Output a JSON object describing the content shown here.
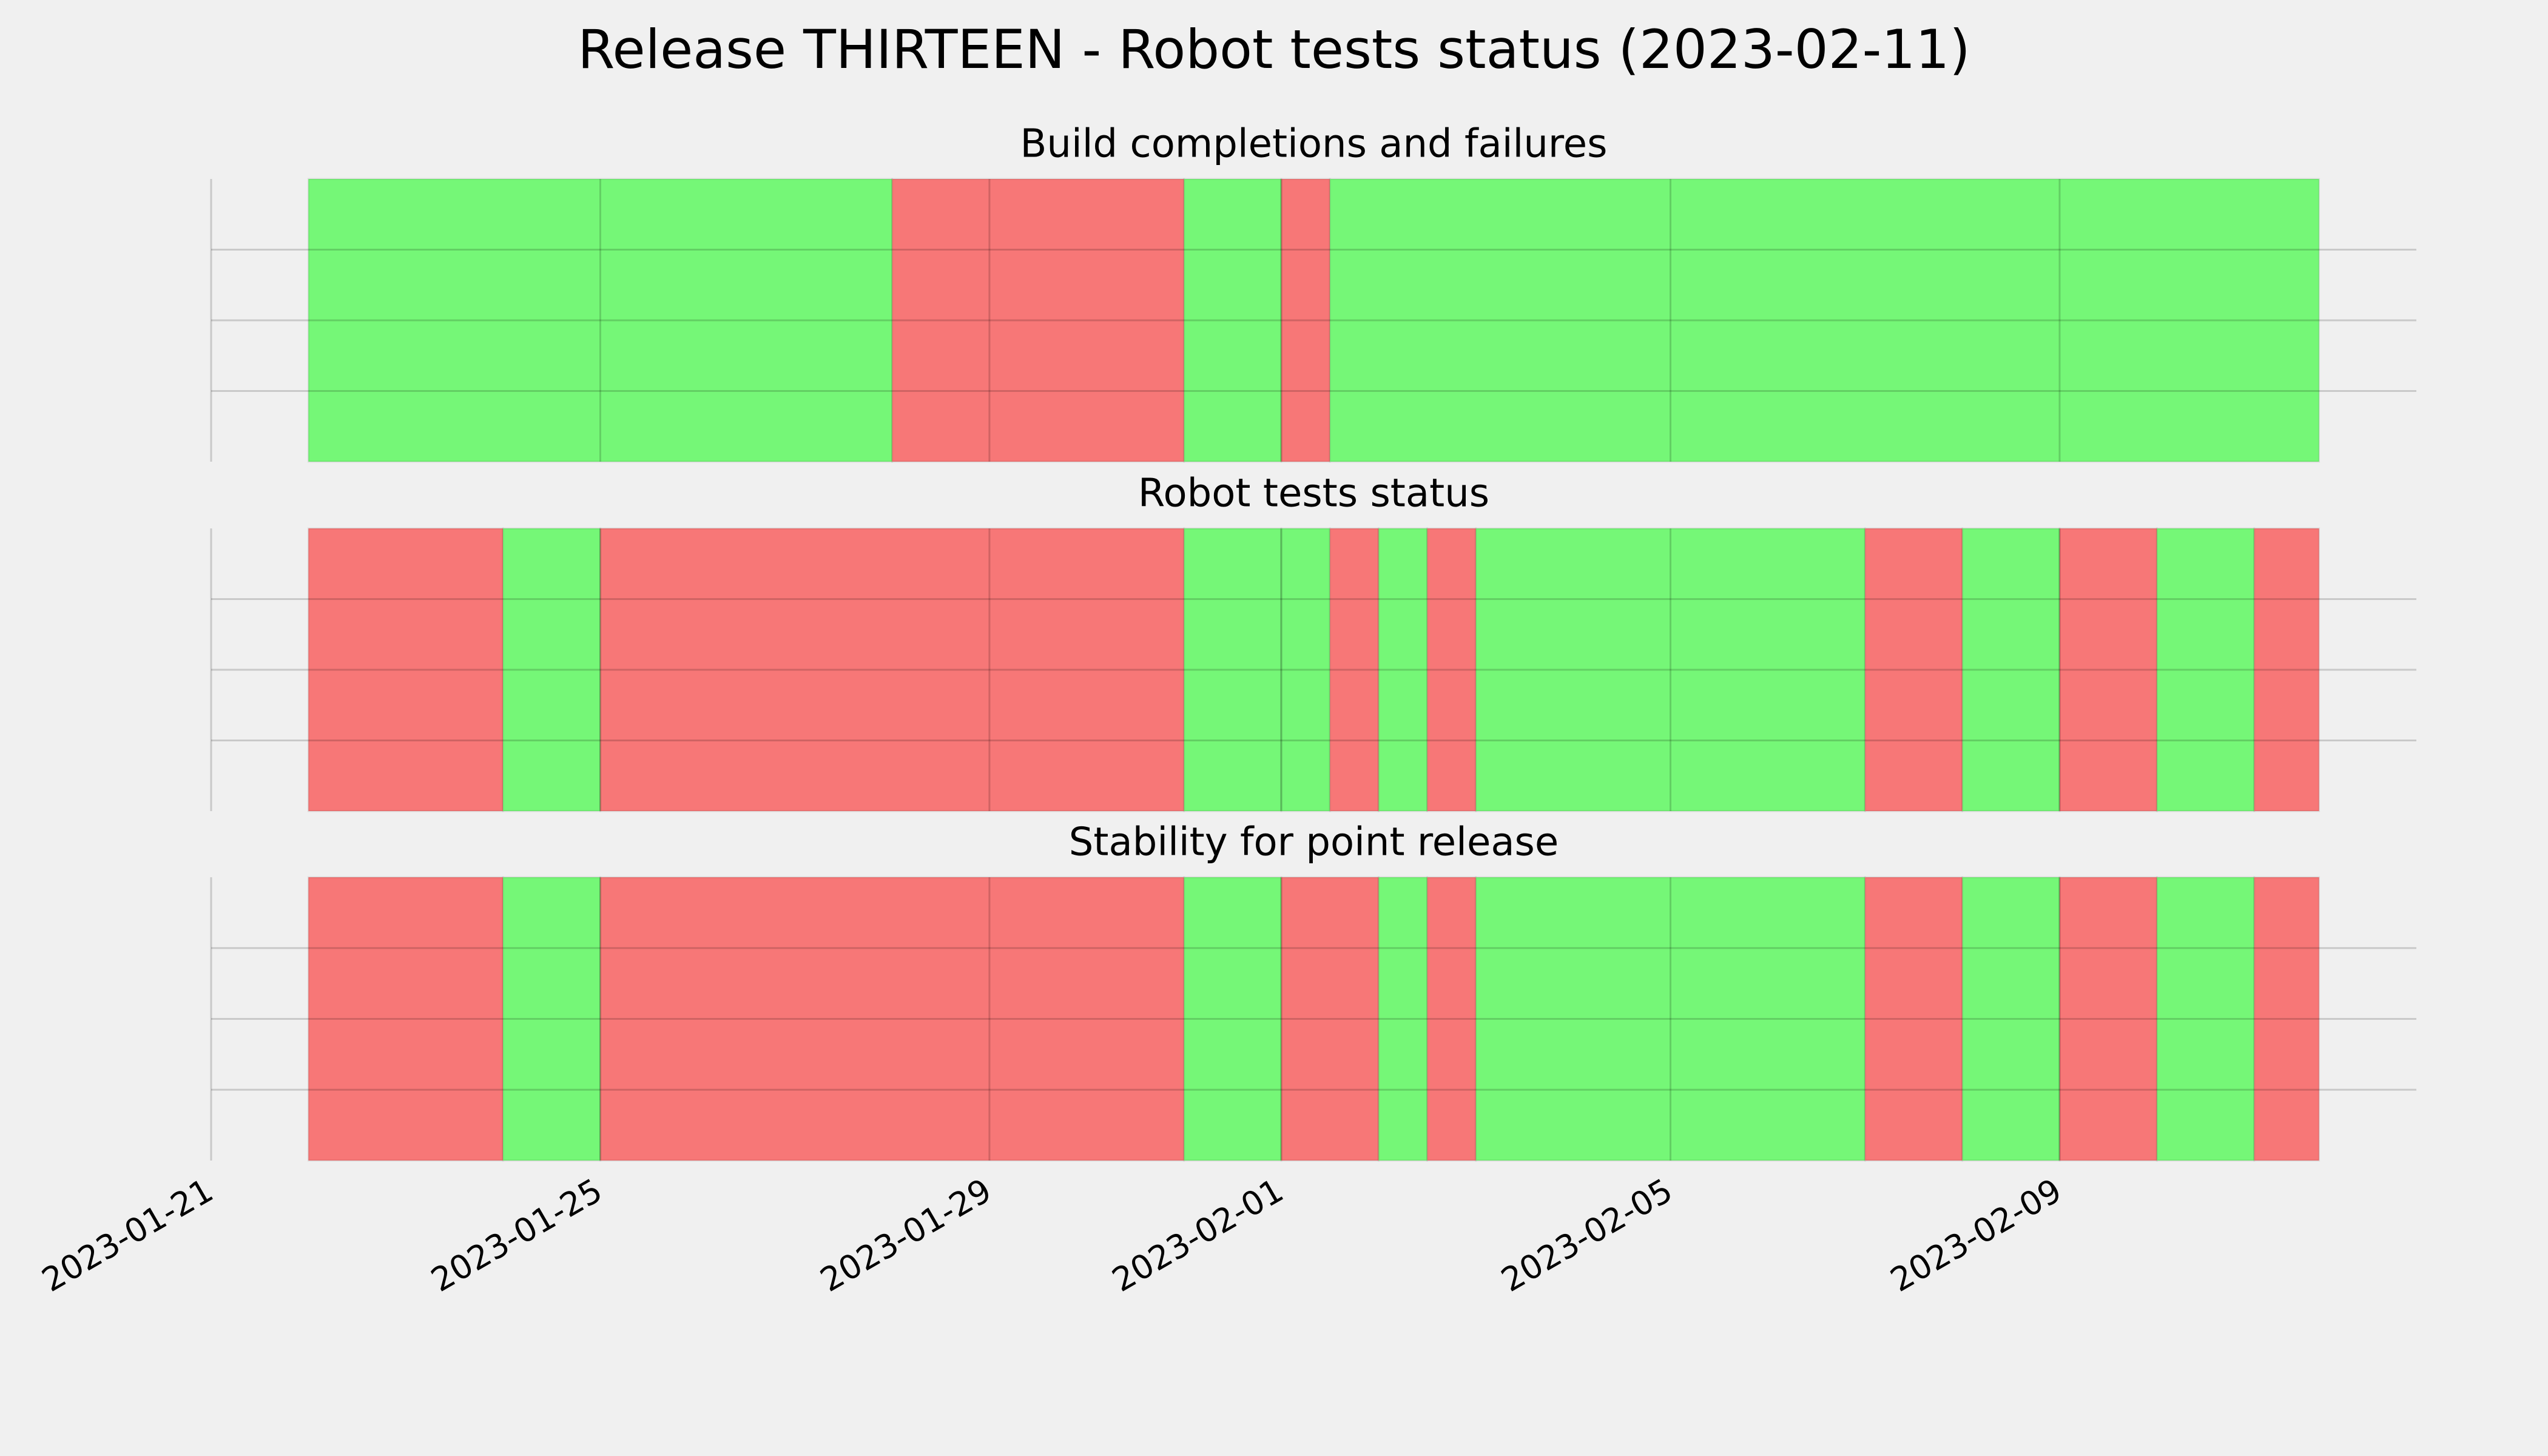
{
  "title": "Release THIRTEEN - Robot tests status (2023-02-11)",
  "chart_data": [
    {
      "type": "span",
      "title": "Build completions and failures",
      "xlim": [
        "2023-01-21",
        "2023-02-12 16:00"
      ],
      "xticks": [
        "2023-01-21",
        "2023-01-25",
        "2023-01-29",
        "2023-02-01",
        "2023-02-05",
        "2023-02-09"
      ],
      "ylim": [
        0,
        1
      ],
      "yticks": [
        0.25,
        0.5,
        0.75
      ],
      "grid": true,
      "segments": [
        {
          "start": "2023-01-22",
          "end": "2023-01-28",
          "color": "#75f777"
        },
        {
          "start": "2023-01-28",
          "end": "2023-01-31",
          "color": "#f77777"
        },
        {
          "start": "2023-01-31",
          "end": "2023-02-01",
          "color": "#75f777"
        },
        {
          "start": "2023-02-01",
          "end": "2023-02-01 12:00",
          "color": "#f77777"
        },
        {
          "start": "2023-02-01 12:00",
          "end": "2023-02-11 16:00",
          "color": "#75f777"
        }
      ]
    },
    {
      "type": "span",
      "title": "Robot tests status",
      "xlim": [
        "2023-01-21",
        "2023-02-12 16:00"
      ],
      "xticks": [
        "2023-01-21",
        "2023-01-25",
        "2023-01-29",
        "2023-02-01",
        "2023-02-05",
        "2023-02-09"
      ],
      "ylim": [
        0,
        1
      ],
      "yticks": [
        0.25,
        0.5,
        0.75
      ],
      "grid": true,
      "segments": [
        {
          "start": "2023-01-22",
          "end": "2023-01-24",
          "color": "#f77777"
        },
        {
          "start": "2023-01-24",
          "end": "2023-01-25",
          "color": "#75f777"
        },
        {
          "start": "2023-01-25",
          "end": "2023-01-31",
          "color": "#f77777"
        },
        {
          "start": "2023-01-31",
          "end": "2023-02-01",
          "color": "#75f777"
        },
        {
          "start": "2023-02-01",
          "end": "2023-02-01 12:00",
          "color": "#75f777"
        },
        {
          "start": "2023-02-01 12:00",
          "end": "2023-02-02",
          "color": "#f77777"
        },
        {
          "start": "2023-02-02",
          "end": "2023-02-02 12:00",
          "color": "#75f777"
        },
        {
          "start": "2023-02-02 12:00",
          "end": "2023-02-03",
          "color": "#f77777"
        },
        {
          "start": "2023-02-03",
          "end": "2023-02-07",
          "color": "#75f777"
        },
        {
          "start": "2023-02-07",
          "end": "2023-02-08",
          "color": "#f77777"
        },
        {
          "start": "2023-02-08",
          "end": "2023-02-09",
          "color": "#75f777"
        },
        {
          "start": "2023-02-09",
          "end": "2023-02-10",
          "color": "#f77777"
        },
        {
          "start": "2023-02-10",
          "end": "2023-02-11",
          "color": "#75f777"
        },
        {
          "start": "2023-02-11",
          "end": "2023-02-11 16:00",
          "color": "#f77777"
        }
      ]
    },
    {
      "type": "span",
      "title": "Stability for point release",
      "xlim": [
        "2023-01-21",
        "2023-02-12 16:00"
      ],
      "xticks": [
        "2023-01-21",
        "2023-01-25",
        "2023-01-29",
        "2023-02-01",
        "2023-02-05",
        "2023-02-09"
      ],
      "ylim": [
        0,
        1
      ],
      "yticks": [
        0.25,
        0.5,
        0.75
      ],
      "grid": true,
      "segments": [
        {
          "start": "2023-01-22",
          "end": "2023-01-24",
          "color": "#f77777"
        },
        {
          "start": "2023-01-24",
          "end": "2023-01-25",
          "color": "#75f777"
        },
        {
          "start": "2023-01-25",
          "end": "2023-01-31",
          "color": "#f77777"
        },
        {
          "start": "2023-01-31",
          "end": "2023-02-01",
          "color": "#75f777"
        },
        {
          "start": "2023-02-01",
          "end": "2023-02-02",
          "color": "#f77777"
        },
        {
          "start": "2023-02-02",
          "end": "2023-02-02 12:00",
          "color": "#75f777"
        },
        {
          "start": "2023-02-02 12:00",
          "end": "2023-02-03",
          "color": "#f77777"
        },
        {
          "start": "2023-02-03",
          "end": "2023-02-07",
          "color": "#75f777"
        },
        {
          "start": "2023-02-07",
          "end": "2023-02-08",
          "color": "#f77777"
        },
        {
          "start": "2023-02-08",
          "end": "2023-02-09",
          "color": "#75f777"
        },
        {
          "start": "2023-02-09",
          "end": "2023-02-10",
          "color": "#f77777"
        },
        {
          "start": "2023-02-10",
          "end": "2023-02-11",
          "color": "#75f777"
        },
        {
          "start": "2023-02-11",
          "end": "2023-02-11 16:00",
          "color": "#f77777"
        }
      ]
    }
  ]
}
